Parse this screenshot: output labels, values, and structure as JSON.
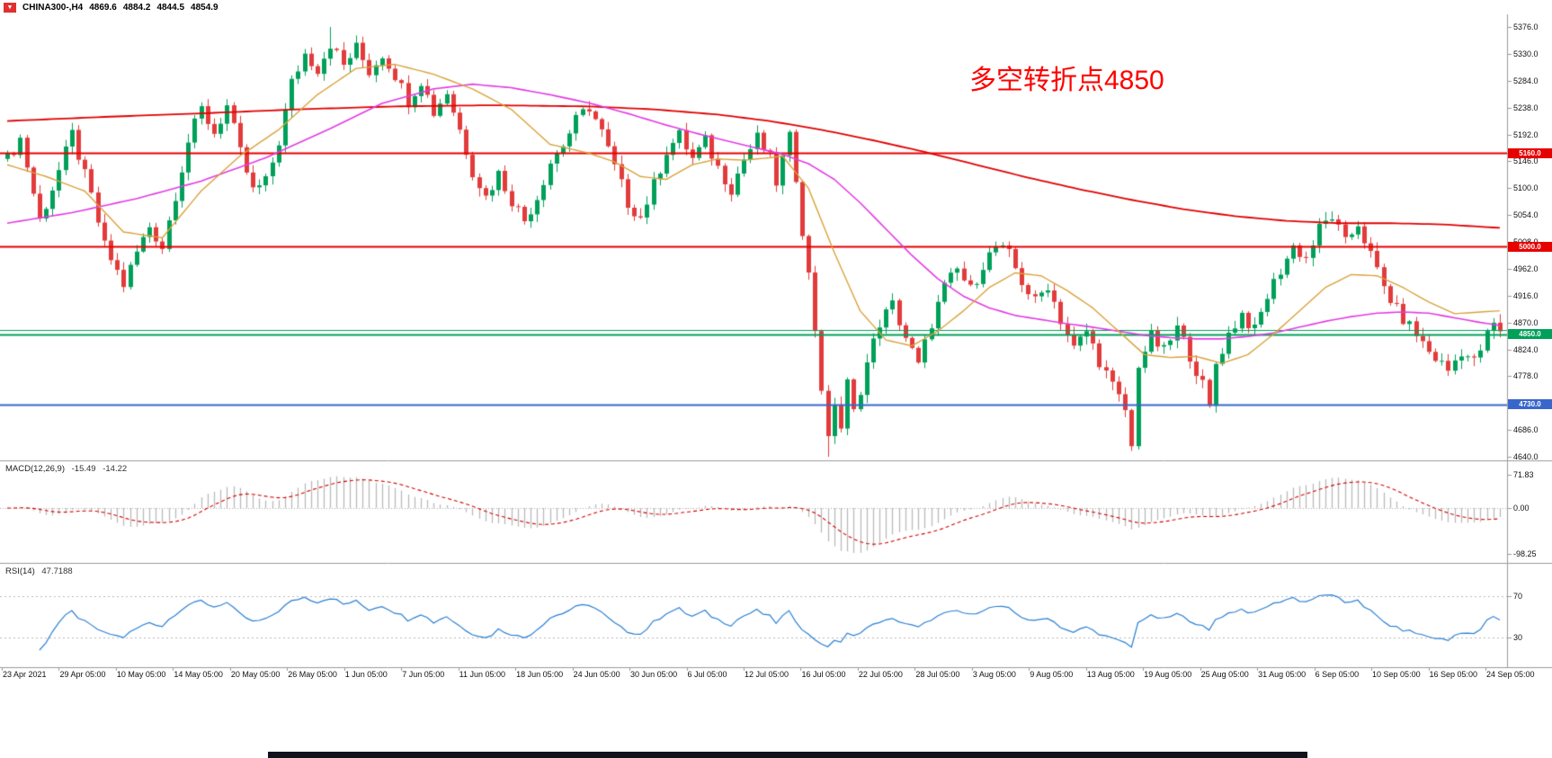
{
  "header": {
    "symbol_period": "CHINA300-,H4",
    "open": "4869.6",
    "high": "4884.2",
    "low": "4844.5",
    "close": "4854.9"
  },
  "icons": {
    "one_click_arrow": "▼"
  },
  "annotation": {
    "text": "多空转折点4850",
    "color": "#ff0000"
  },
  "macd_panel": {
    "label": "MACD(12,26,9)",
    "main_value": "-15.49",
    "signal_value": "-14.22",
    "ticks": [
      "71.83",
      "0.00",
      "-98.25"
    ]
  },
  "rsi_panel": {
    "label": "RSI(14)",
    "value": "47.7188",
    "ticks": [
      "70",
      "30"
    ]
  },
  "price_axis": {
    "ticks": [
      "5376.0",
      "5330.0",
      "5284.0",
      "5238.0",
      "5192.0",
      "5146.0",
      "5100.0",
      "5054.0",
      "5008.0",
      "4962.0",
      "4916.0",
      "4870.0",
      "4824.0",
      "4778.0",
      "4732.0",
      "4686.0",
      "4640.0"
    ]
  },
  "x_axis": {
    "labels": [
      "23 Apr 2021",
      "29 Apr 05:00",
      "10 May 05:00",
      "14 May 05:00",
      "20 May 05:00",
      "26 May 05:00",
      "1 Jun 05:00",
      "7 Jun 05:00",
      "11 Jun 05:00",
      "18 Jun 05:00",
      "24 Jun 05:00",
      "30 Jun 05:00",
      "6 Jul 05:00",
      "12 Jul 05:00",
      "16 Jul 05:00",
      "22 Jul 05:00",
      "28 Jul 05:00",
      "3 Aug 05:00",
      "9 Aug 05:00",
      "13 Aug 05:00",
      "19 Aug 05:00",
      "25 Aug 05:00",
      "31 Aug 05:00",
      "6 Sep 05:00",
      "10 Sep 05:00",
      "16 Sep 05:00",
      "24 Sep 05:00"
    ]
  },
  "chart_data": {
    "type": "candlestick",
    "symbol": "CHINA300-",
    "timeframe": "H4",
    "bars": 232,
    "last_ohlc": {
      "open": 4869.6,
      "high": 4884.2,
      "low": 4844.5,
      "close": 4854.9
    },
    "price_range": {
      "min": 4640,
      "max": 5376,
      "tick_step": 46
    },
    "up_color": "#00a05a",
    "down_color": "#e23b3b",
    "noise_amplitude": 24,
    "close_anchors": [
      [
        0,
        5150
      ],
      [
        2,
        5185
      ],
      [
        5,
        5045
      ],
      [
        7,
        5100
      ],
      [
        9,
        5160
      ],
      [
        10,
        5192
      ],
      [
        13,
        5085
      ],
      [
        15,
        5000
      ],
      [
        18,
        4935
      ],
      [
        20,
        4990
      ],
      [
        22,
        5035
      ],
      [
        24,
        5000
      ],
      [
        26,
        5090
      ],
      [
        28,
        5180
      ],
      [
        30,
        5235
      ],
      [
        32,
        5195
      ],
      [
        34,
        5240
      ],
      [
        36,
        5160
      ],
      [
        38,
        5095
      ],
      [
        40,
        5110
      ],
      [
        42,
        5180
      ],
      [
        44,
        5280
      ],
      [
        46,
        5330
      ],
      [
        48,
        5305
      ],
      [
        50,
        5348
      ],
      [
        52,
        5310
      ],
      [
        54,
        5340
      ],
      [
        56,
        5300
      ],
      [
        58,
        5330
      ],
      [
        60,
        5295
      ],
      [
        62,
        5250
      ],
      [
        64,
        5285
      ],
      [
        66,
        5230
      ],
      [
        68,
        5265
      ],
      [
        70,
        5200
      ],
      [
        72,
        5130
      ],
      [
        74,
        5085
      ],
      [
        76,
        5125
      ],
      [
        78,
        5080
      ],
      [
        80,
        5045
      ],
      [
        82,
        5085
      ],
      [
        84,
        5145
      ],
      [
        86,
        5175
      ],
      [
        88,
        5215
      ],
      [
        90,
        5240
      ],
      [
        92,
        5195
      ],
      [
        94,
        5135
      ],
      [
        96,
        5075
      ],
      [
        98,
        5050
      ],
      [
        100,
        5105
      ],
      [
        102,
        5165
      ],
      [
        104,
        5190
      ],
      [
        106,
        5150
      ],
      [
        108,
        5180
      ],
      [
        110,
        5135
      ],
      [
        112,
        5100
      ],
      [
        114,
        5150
      ],
      [
        116,
        5185
      ],
      [
        118,
        5150
      ],
      [
        119,
        5110
      ],
      [
        120,
        5150
      ],
      [
        121,
        5185
      ],
      [
        122,
        5120
      ],
      [
        123,
        5030
      ],
      [
        124,
        4950
      ],
      [
        125,
        4860
      ],
      [
        126,
        4760
      ],
      [
        127,
        4665
      ],
      [
        128,
        4735
      ],
      [
        129,
        4690
      ],
      [
        130,
        4765
      ],
      [
        131,
        4715
      ],
      [
        133,
        4800
      ],
      [
        135,
        4870
      ],
      [
        137,
        4900
      ],
      [
        139,
        4845
      ],
      [
        141,
        4795
      ],
      [
        143,
        4870
      ],
      [
        145,
        4930
      ],
      [
        147,
        4960
      ],
      [
        149,
        4925
      ],
      [
        151,
        4970
      ],
      [
        153,
        5000
      ],
      [
        155,
        4985
      ],
      [
        157,
        4940
      ],
      [
        159,
        4905
      ],
      [
        161,
        4935
      ],
      [
        163,
        4875
      ],
      [
        165,
        4825
      ],
      [
        167,
        4855
      ],
      [
        169,
        4805
      ],
      [
        171,
        4760
      ],
      [
        173,
        4720
      ],
      [
        174,
        4655
      ],
      [
        175,
        4800
      ],
      [
        177,
        4845
      ],
      [
        179,
        4820
      ],
      [
        181,
        4860
      ],
      [
        183,
        4815
      ],
      [
        185,
        4762
      ],
      [
        186,
        4722
      ],
      [
        187,
        4800
      ],
      [
        189,
        4850
      ],
      [
        191,
        4885
      ],
      [
        193,
        4855
      ],
      [
        195,
        4915
      ],
      [
        197,
        4960
      ],
      [
        199,
        5000
      ],
      [
        201,
        4980
      ],
      [
        203,
        5030
      ],
      [
        205,
        5052
      ],
      [
        207,
        5005
      ],
      [
        209,
        5040
      ],
      [
        211,
        4985
      ],
      [
        213,
        4930
      ],
      [
        215,
        4890
      ],
      [
        218,
        4850
      ],
      [
        220,
        4820
      ],
      [
        223,
        4788
      ],
      [
        225,
        4822
      ],
      [
        227,
        4802
      ],
      [
        230,
        4869.6
      ],
      [
        231,
        4854.9
      ]
    ],
    "spike_high": {
      "index": 50,
      "price": 5376
    },
    "spike_lows": [
      {
        "index": 127,
        "price": 4640
      },
      {
        "index": 174,
        "price": 4650
      }
    ],
    "moving_averages": [
      {
        "name": "ma-slow",
        "color": "#e00000",
        "width": 1.8,
        "anchors": [
          [
            0,
            5215
          ],
          [
            15,
            5222
          ],
          [
            30,
            5228
          ],
          [
            45,
            5235
          ],
          [
            60,
            5240
          ],
          [
            75,
            5242
          ],
          [
            90,
            5240
          ],
          [
            100,
            5235
          ],
          [
            110,
            5226
          ],
          [
            118,
            5215
          ],
          [
            126,
            5200
          ],
          [
            134,
            5182
          ],
          [
            142,
            5162
          ],
          [
            150,
            5140
          ],
          [
            158,
            5118
          ],
          [
            166,
            5098
          ],
          [
            174,
            5080
          ],
          [
            182,
            5064
          ],
          [
            190,
            5052
          ],
          [
            198,
            5044
          ],
          [
            206,
            5040
          ],
          [
            214,
            5040
          ],
          [
            222,
            5038
          ],
          [
            231,
            5032
          ]
        ]
      },
      {
        "name": "ma-mid",
        "color": "#e33be3",
        "width": 1.6,
        "anchors": [
          [
            0,
            5040
          ],
          [
            10,
            5058
          ],
          [
            20,
            5082
          ],
          [
            30,
            5112
          ],
          [
            40,
            5152
          ],
          [
            50,
            5202
          ],
          [
            58,
            5245
          ],
          [
            66,
            5270
          ],
          [
            72,
            5278
          ],
          [
            78,
            5272
          ],
          [
            84,
            5260
          ],
          [
            90,
            5246
          ],
          [
            96,
            5228
          ],
          [
            102,
            5208
          ],
          [
            108,
            5190
          ],
          [
            114,
            5174
          ],
          [
            120,
            5158
          ],
          [
            124,
            5142
          ],
          [
            128,
            5115
          ],
          [
            132,
            5075
          ],
          [
            136,
            5030
          ],
          [
            140,
            4985
          ],
          [
            144,
            4945
          ],
          [
            148,
            4915
          ],
          [
            152,
            4895
          ],
          [
            156,
            4882
          ],
          [
            160,
            4875
          ],
          [
            164,
            4868
          ],
          [
            168,
            4862
          ],
          [
            172,
            4855
          ],
          [
            176,
            4848
          ],
          [
            180,
            4844
          ],
          [
            184,
            4842
          ],
          [
            188,
            4842
          ],
          [
            192,
            4846
          ],
          [
            196,
            4852
          ],
          [
            200,
            4862
          ],
          [
            204,
            4872
          ],
          [
            208,
            4880
          ],
          [
            212,
            4886
          ],
          [
            216,
            4888
          ],
          [
            220,
            4886
          ],
          [
            224,
            4878
          ],
          [
            228,
            4870
          ],
          [
            231,
            4865
          ]
        ]
      },
      {
        "name": "ma-fast",
        "color": "#d9a23c",
        "width": 1.4,
        "anchors": [
          [
            0,
            5140
          ],
          [
            6,
            5120
          ],
          [
            12,
            5095
          ],
          [
            18,
            5025
          ],
          [
            24,
            5015
          ],
          [
            30,
            5095
          ],
          [
            36,
            5155
          ],
          [
            42,
            5200
          ],
          [
            48,
            5260
          ],
          [
            54,
            5305
          ],
          [
            60,
            5312
          ],
          [
            66,
            5295
          ],
          [
            72,
            5270
          ],
          [
            78,
            5235
          ],
          [
            84,
            5175
          ],
          [
            90,
            5160
          ],
          [
            94,
            5145
          ],
          [
            98,
            5120
          ],
          [
            102,
            5115
          ],
          [
            106,
            5140
          ],
          [
            110,
            5150
          ],
          [
            114,
            5148
          ],
          [
            118,
            5152
          ],
          [
            120,
            5155
          ],
          [
            124,
            5100
          ],
          [
            128,
            4990
          ],
          [
            132,
            4890
          ],
          [
            136,
            4840
          ],
          [
            140,
            4830
          ],
          [
            144,
            4855
          ],
          [
            148,
            4890
          ],
          [
            152,
            4930
          ],
          [
            156,
            4955
          ],
          [
            160,
            4950
          ],
          [
            164,
            4925
          ],
          [
            168,
            4895
          ],
          [
            172,
            4855
          ],
          [
            176,
            4815
          ],
          [
            180,
            4810
          ],
          [
            184,
            4812
          ],
          [
            188,
            4800
          ],
          [
            192,
            4815
          ],
          [
            196,
            4850
          ],
          [
            200,
            4890
          ],
          [
            204,
            4930
          ],
          [
            208,
            4952
          ],
          [
            212,
            4950
          ],
          [
            216,
            4930
          ],
          [
            220,
            4905
          ],
          [
            224,
            4885
          ],
          [
            228,
            4888
          ],
          [
            231,
            4890
          ]
        ]
      }
    ],
    "horizontal_lines": [
      {
        "price": 5160,
        "color": "#e60000",
        "width": 2,
        "label": "5160.0"
      },
      {
        "price": 5000,
        "color": "#e60000",
        "width": 2,
        "label": "5000.0"
      },
      {
        "price": 4857,
        "color": "#00a05a",
        "width": 1,
        "label": null
      },
      {
        "price": 4850,
        "color": "#00a05a",
        "width": 2,
        "label": "4850.0"
      },
      {
        "price": 4730,
        "color": "#3a66cc",
        "width": 2,
        "label": "4730.0"
      }
    ],
    "macd": {
      "params": [
        12,
        26,
        9
      ],
      "display_range": [
        -98.25,
        71.83
      ],
      "histogram_color": "#b8b8b8",
      "signal_color": "#d40000",
      "last_main": -15.49,
      "last_signal": -14.22
    },
    "rsi": {
      "period": 14,
      "last": 47.7188,
      "levels": [
        30,
        70
      ],
      "line_color": "#2a7fd4"
    }
  }
}
